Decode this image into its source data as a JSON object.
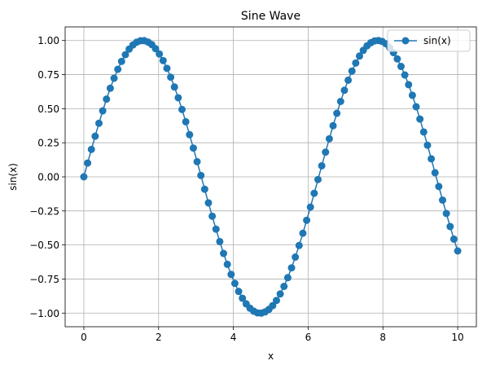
{
  "chart_data": {
    "type": "line",
    "title": "Sine Wave",
    "xlabel": "x",
    "ylabel": "sin(x)",
    "xlim": [
      -0.5,
      10.5
    ],
    "ylim": [
      -1.1,
      1.1
    ],
    "xticks": [
      0,
      2,
      4,
      6,
      8,
      10
    ],
    "xtick_labels": [
      "0",
      "2",
      "4",
      "6",
      "8",
      "10"
    ],
    "yticks": [
      -1.0,
      -0.75,
      -0.5,
      -0.25,
      0.0,
      0.25,
      0.5,
      0.75,
      1.0
    ],
    "ytick_labels": [
      "−1.00",
      "−0.75",
      "−0.50",
      "−0.25",
      "0.00",
      "0.25",
      "0.50",
      "0.75",
      "1.00"
    ],
    "grid": true,
    "legend": {
      "position": "top-right",
      "entries": [
        "sin(x)"
      ]
    },
    "series": [
      {
        "name": "sin(x)",
        "color": "#1f77b4",
        "marker": "circle",
        "x": [
          0.0,
          0.101,
          0.202,
          0.303,
          0.404,
          0.505,
          0.606,
          0.707,
          0.808,
          0.909,
          1.01,
          1.111,
          1.212,
          1.313,
          1.414,
          1.515,
          1.616,
          1.717,
          1.818,
          1.919,
          2.02,
          2.121,
          2.222,
          2.323,
          2.424,
          2.525,
          2.626,
          2.727,
          2.828,
          2.929,
          3.03,
          3.131,
          3.232,
          3.333,
          3.434,
          3.535,
          3.636,
          3.737,
          3.838,
          3.939,
          4.04,
          4.141,
          4.242,
          4.343,
          4.444,
          4.545,
          4.646,
          4.747,
          4.848,
          4.949,
          5.051,
          5.152,
          5.253,
          5.354,
          5.455,
          5.556,
          5.657,
          5.758,
          5.859,
          5.96,
          6.061,
          6.162,
          6.263,
          6.364,
          6.465,
          6.566,
          6.667,
          6.768,
          6.869,
          6.97,
          7.071,
          7.172,
          7.273,
          7.374,
          7.475,
          7.576,
          7.677,
          7.778,
          7.879,
          7.98,
          8.081,
          8.182,
          8.283,
          8.384,
          8.485,
          8.586,
          8.687,
          8.788,
          8.889,
          8.99,
          9.091,
          9.192,
          9.293,
          9.394,
          9.495,
          9.596,
          9.697,
          9.798,
          9.899,
          10.0
        ],
        "y": [
          0.0,
          0.101,
          0.201,
          0.298,
          0.393,
          0.484,
          0.57,
          0.65,
          0.723,
          0.789,
          0.847,
          0.896,
          0.937,
          0.967,
          0.988,
          0.998,
          0.999,
          0.989,
          0.97,
          0.94,
          0.901,
          0.853,
          0.796,
          0.731,
          0.659,
          0.58,
          0.494,
          0.404,
          0.309,
          0.211,
          0.111,
          0.01,
          -0.091,
          -0.191,
          -0.289,
          -0.384,
          -0.475,
          -0.562,
          -0.642,
          -0.716,
          -0.782,
          -0.841,
          -0.891,
          -0.932,
          -0.964,
          -0.986,
          -0.998,
          -1.0,
          -0.991,
          -0.973,
          -0.945,
          -0.907,
          -0.859,
          -0.804,
          -0.74,
          -0.668,
          -0.589,
          -0.504,
          -0.414,
          -0.319,
          -0.222,
          -0.121,
          -0.02,
          0.081,
          0.181,
          0.279,
          0.375,
          0.466,
          0.553,
          0.635,
          0.709,
          0.776,
          0.835,
          0.886,
          0.928,
          0.961,
          0.984,
          0.997,
          1.0,
          0.993,
          0.976,
          0.948,
          0.911,
          0.865,
          0.81,
          0.747,
          0.676,
          0.598,
          0.514,
          0.424,
          0.329,
          0.232,
          0.132,
          0.03,
          -0.071,
          -0.171,
          -0.269,
          -0.365,
          -0.457,
          -0.544
        ]
      }
    ]
  }
}
